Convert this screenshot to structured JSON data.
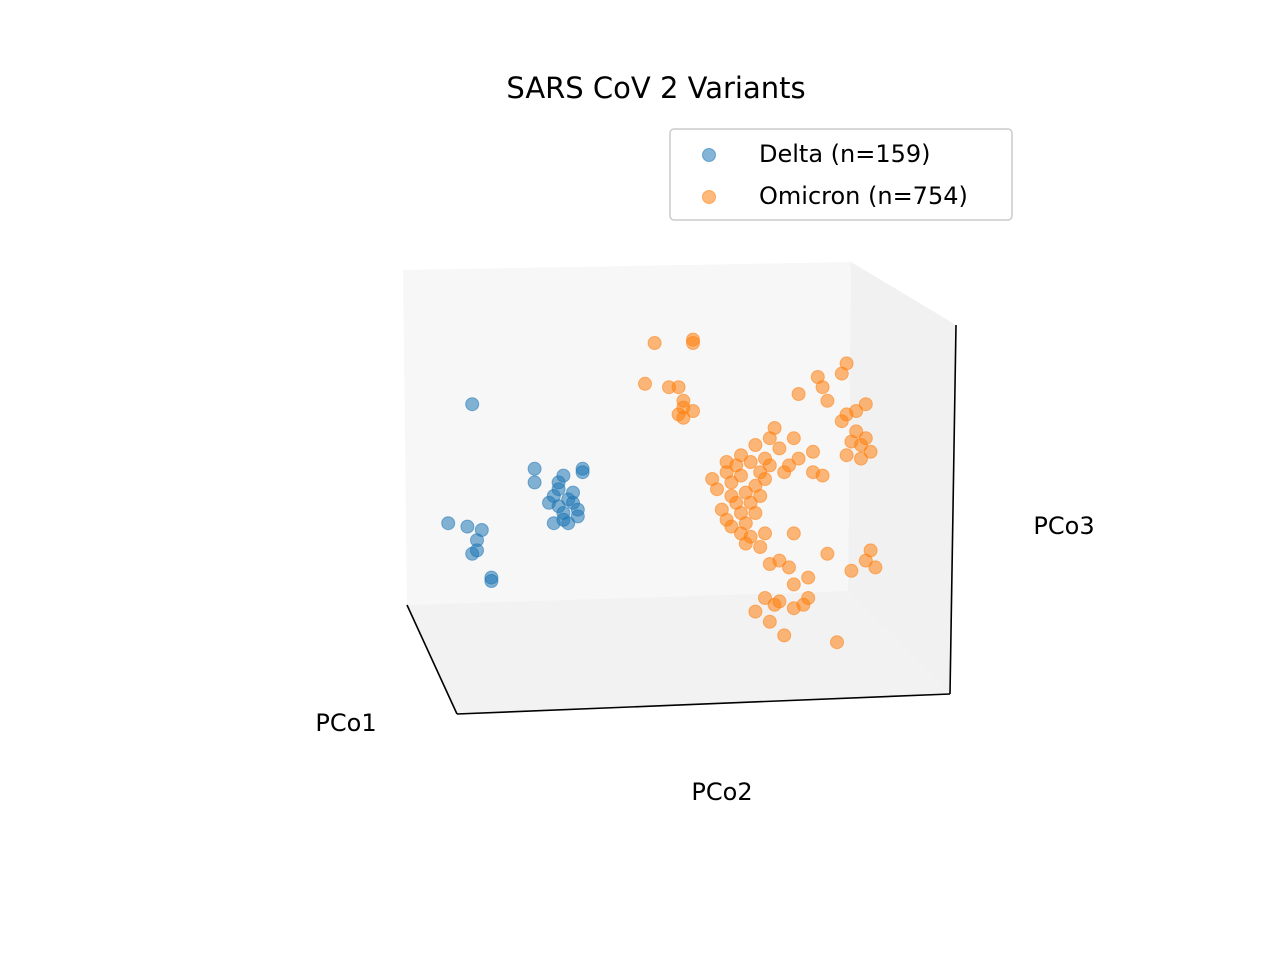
{
  "chart_data": {
    "type": "scatter",
    "projection": "3d",
    "title": "SARS CoV 2 Variants",
    "xlabel": "PCo1",
    "ylabel": "PCo2",
    "zlabel": "PCo3",
    "grid": false,
    "ticks": false,
    "legend_position": "top-right",
    "note": "point values are approximate, expressed in the chart's normalized PCo2 (horizontal) / PCo3 (vertical) space as seen in this projection",
    "series": [
      {
        "name": "Delta (n=159)",
        "color": "#1f77b4",
        "points": [
          [
            0.14,
            0.62
          ],
          [
            0.09,
            0.27
          ],
          [
            0.13,
            0.26
          ],
          [
            0.15,
            0.22
          ],
          [
            0.16,
            0.25
          ],
          [
            0.14,
            0.18
          ],
          [
            0.15,
            0.19
          ],
          [
            0.18,
            0.11
          ],
          [
            0.18,
            0.1
          ],
          [
            0.27,
            0.43
          ],
          [
            0.27,
            0.39
          ],
          [
            0.32,
            0.39
          ],
          [
            0.33,
            0.41
          ],
          [
            0.37,
            0.43
          ],
          [
            0.37,
            0.42
          ],
          [
            0.31,
            0.35
          ],
          [
            0.32,
            0.32
          ],
          [
            0.33,
            0.3
          ],
          [
            0.34,
            0.34
          ],
          [
            0.35,
            0.33
          ],
          [
            0.33,
            0.28
          ],
          [
            0.31,
            0.27
          ],
          [
            0.34,
            0.27
          ],
          [
            0.36,
            0.29
          ],
          [
            0.35,
            0.36
          ],
          [
            0.36,
            0.31
          ],
          [
            0.32,
            0.37
          ],
          [
            0.3,
            0.33
          ]
        ]
      },
      {
        "name": "Omicron (n=754)",
        "color": "#ff7f0e",
        "points": [
          [
            0.52,
            0.8
          ],
          [
            0.6,
            0.81
          ],
          [
            0.6,
            0.8
          ],
          [
            0.5,
            0.68
          ],
          [
            0.55,
            0.67
          ],
          [
            0.57,
            0.67
          ],
          [
            0.58,
            0.63
          ],
          [
            0.58,
            0.61
          ],
          [
            0.57,
            0.59
          ],
          [
            0.6,
            0.6
          ],
          [
            0.58,
            0.58
          ],
          [
            0.64,
            0.4
          ],
          [
            0.65,
            0.37
          ],
          [
            0.67,
            0.42
          ],
          [
            0.68,
            0.39
          ],
          [
            0.69,
            0.44
          ],
          [
            0.7,
            0.41
          ],
          [
            0.72,
            0.45
          ],
          [
            0.71,
            0.36
          ],
          [
            0.69,
            0.33
          ],
          [
            0.66,
            0.31
          ],
          [
            0.67,
            0.28
          ],
          [
            0.7,
            0.3
          ],
          [
            0.72,
            0.33
          ],
          [
            0.73,
            0.38
          ],
          [
            0.74,
            0.42
          ],
          [
            0.75,
            0.46
          ],
          [
            0.76,
            0.52
          ],
          [
            0.77,
            0.55
          ],
          [
            0.78,
            0.49
          ],
          [
            0.76,
            0.44
          ],
          [
            0.73,
            0.5
          ],
          [
            0.68,
            0.35
          ],
          [
            0.71,
            0.27
          ],
          [
            0.68,
            0.26
          ],
          [
            0.7,
            0.24
          ],
          [
            0.72,
            0.23
          ],
          [
            0.71,
            0.21
          ],
          [
            0.75,
            0.24
          ],
          [
            0.79,
            0.42
          ],
          [
            0.8,
            0.44
          ],
          [
            0.82,
            0.46
          ],
          [
            0.85,
            0.48
          ],
          [
            0.85,
            0.42
          ],
          [
            0.81,
            0.52
          ],
          [
            0.87,
            0.41
          ],
          [
            0.82,
            0.65
          ],
          [
            0.87,
            0.67
          ],
          [
            0.88,
            0.63
          ],
          [
            0.91,
            0.57
          ],
          [
            0.92,
            0.59
          ],
          [
            0.94,
            0.6
          ],
          [
            0.96,
            0.62
          ],
          [
            0.94,
            0.54
          ],
          [
            0.93,
            0.51
          ],
          [
            0.95,
            0.5
          ],
          [
            0.96,
            0.52
          ],
          [
            0.92,
            0.47
          ],
          [
            0.95,
            0.46
          ],
          [
            0.97,
            0.48
          ],
          [
            0.92,
            0.74
          ],
          [
            0.86,
            0.7
          ],
          [
            0.91,
            0.71
          ],
          [
            0.81,
            0.24
          ],
          [
            0.8,
            0.14
          ],
          [
            0.76,
            0.15
          ],
          [
            0.78,
            0.16
          ],
          [
            0.81,
            0.09
          ],
          [
            0.84,
            0.11
          ],
          [
            0.75,
            0.05
          ],
          [
            0.73,
            0.01
          ],
          [
            0.77,
            0.03
          ],
          [
            0.78,
            0.04
          ],
          [
            0.81,
            0.02
          ],
          [
            0.83,
            0.03
          ],
          [
            0.76,
            -0.02
          ],
          [
            0.88,
            0.18
          ],
          [
            0.93,
            0.13
          ],
          [
            0.96,
            0.16
          ],
          [
            0.97,
            0.19
          ],
          [
            0.98,
            0.14
          ],
          [
            0.9,
            -0.08
          ],
          [
            0.79,
            -0.06
          ],
          [
            0.84,
            0.05
          ],
          [
            0.74,
            0.2
          ],
          [
            0.7,
            0.47
          ],
          [
            0.74,
            0.35
          ],
          [
            0.73,
            0.3
          ],
          [
            0.67,
            0.45
          ],
          [
            0.75,
            0.4
          ]
        ]
      }
    ]
  }
}
